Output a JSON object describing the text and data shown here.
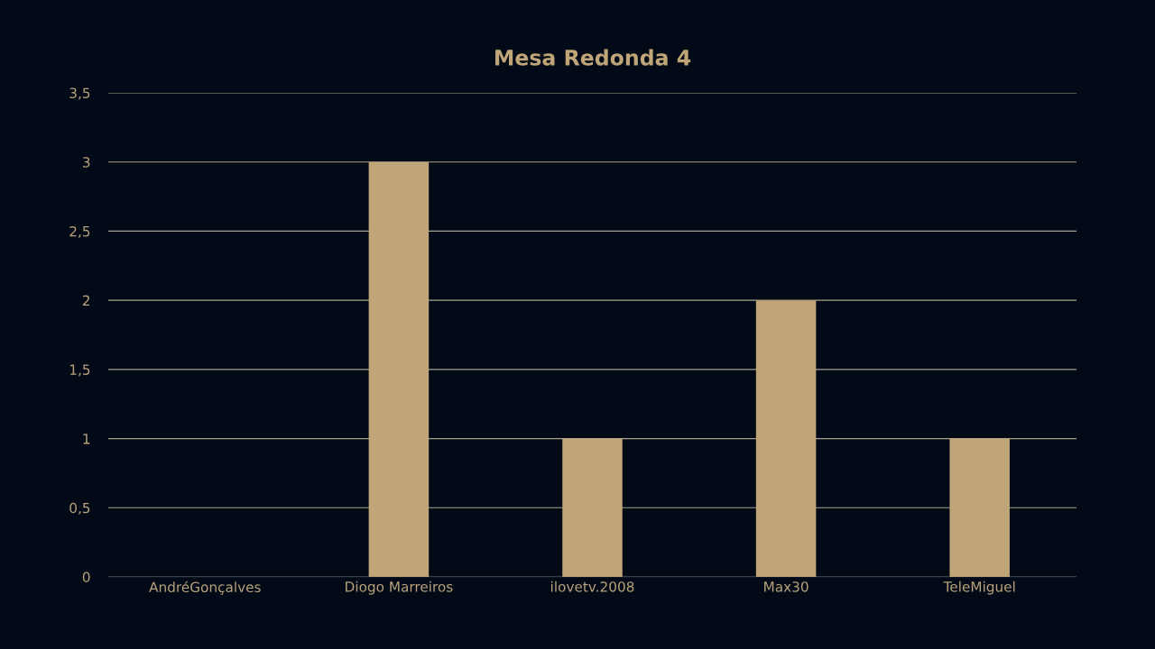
{
  "chart_data": {
    "type": "bar",
    "title": "Mesa Redonda 4",
    "categories": [
      "AndréGonçalves",
      "Diogo Marreiros",
      "ilovetv.2008",
      "Max30",
      "TeleMiguel"
    ],
    "values": [
      0,
      3,
      1,
      2,
      1
    ],
    "color": "#c0a578",
    "ylim": [
      0,
      3.5
    ],
    "yticks": [
      0,
      {
        "value": 0.5,
        "label": "0,5"
      },
      1,
      {
        "value": 1.5,
        "label": "1,5"
      },
      2,
      {
        "value": 2.5,
        "label": "2,5"
      },
      3,
      {
        "value": 3.5,
        "label": "3,5"
      }
    ],
    "grid": "y"
  }
}
